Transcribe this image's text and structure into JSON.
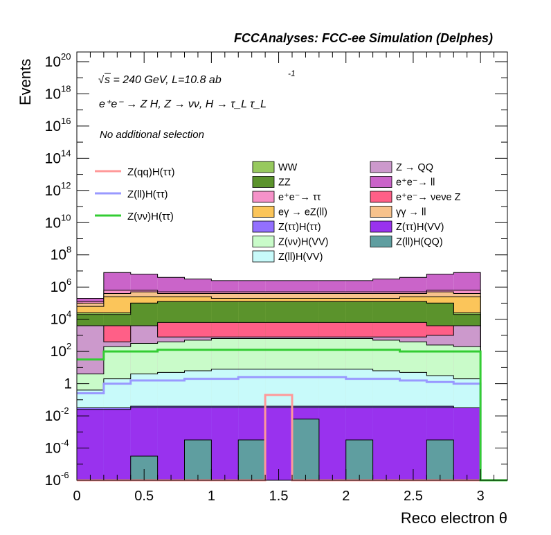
{
  "chart_data": {
    "type": "bar",
    "title": "FCCAnalyses: FCC-ee Simulation (Delphes)",
    "xlabel": "Reco electron θ",
    "ylabel": "Events",
    "xlim": [
      0,
      3.2
    ],
    "ylim_log10": [
      -6,
      20.6
    ],
    "log_y": true,
    "x_ticks": [
      "0",
      "0.5",
      "1",
      "1.5",
      "2",
      "2.5",
      "3"
    ],
    "y_ticks": [
      {
        "exp": 20,
        "mant": "10",
        "sup": "20"
      },
      {
        "exp": 18,
        "mant": "10",
        "sup": "18"
      },
      {
        "exp": 16,
        "mant": "10",
        "sup": "16"
      },
      {
        "exp": 14,
        "mant": "10",
        "sup": "14"
      },
      {
        "exp": 12,
        "mant": "10",
        "sup": "12"
      },
      {
        "exp": 10,
        "mant": "10",
        "sup": "10"
      },
      {
        "exp": 8,
        "mant": "10",
        "sup": "8"
      },
      {
        "exp": 6,
        "mant": "10",
        "sup": "6"
      },
      {
        "exp": 4,
        "mant": "10",
        "sup": "4"
      },
      {
        "exp": 2,
        "mant": "10",
        "sup": "2"
      },
      {
        "exp": 0,
        "mant": "1",
        "sup": ""
      },
      {
        "exp": -2,
        "mant": "10",
        "sup": "-2"
      },
      {
        "exp": -4,
        "mant": "10",
        "sup": "-4"
      },
      {
        "exp": -6,
        "mant": "10",
        "sup": "-6"
      }
    ],
    "bin_edges": [
      0,
      0.2,
      0.4,
      0.6,
      0.8,
      1.0,
      1.2,
      1.4,
      1.6,
      1.8,
      2.0,
      2.2,
      2.4,
      2.6,
      2.8,
      3.0,
      3.2
    ],
    "annotations": {
      "line1_main": "s = 240 GeV, L=10.8 ab",
      "line1_sup": "-1",
      "line2": "e⁺e⁻ → Z H, Z → νν, H → τ_L τ_L",
      "line3": "No additional selection"
    },
    "stack_cumulative_log10": [
      {
        "name": "Z(ll)H(QQ)",
        "color": "#5f9ea0",
        "top": [
          -6.2,
          -6.2,
          -4.5,
          -6.2,
          -3.5,
          -6.2,
          -3.5,
          -6.2,
          -2.2,
          -6.2,
          -3.5,
          -6.2,
          -6.2,
          -3.5,
          -6.2,
          -6.2
        ]
      },
      {
        "name": "Z(ττ)H(VV)",
        "color": "#9932ee",
        "top": [
          -1.6,
          -1.6,
          -1.5,
          -1.5,
          -1.5,
          -1.5,
          -1.5,
          -1.5,
          -1.5,
          -1.5,
          -1.5,
          -1.5,
          -1.5,
          -1.5,
          -1.5,
          -6.2
        ]
      },
      {
        "name": "Z(ττ)H(ττ)",
        "color": "#9370ff",
        "top": [
          -1.5,
          -1.5,
          -1.4,
          -1.4,
          -1.4,
          -1.4,
          -1.4,
          -1.4,
          -1.4,
          -1.4,
          -1.4,
          -1.4,
          -1.4,
          -1.4,
          -1.5,
          -6.2
        ]
      },
      {
        "name": "Z(ll)H(VV)",
        "color": "#c8fafa",
        "top": [
          -0.4,
          0.3,
          0.6,
          0.7,
          0.8,
          0.9,
          0.9,
          0.9,
          0.9,
          0.9,
          0.9,
          0.8,
          0.7,
          0.5,
          0.3,
          -6.2
        ]
      },
      {
        "name": "Z(νν)H(VV)",
        "color": "#c9fbc9",
        "top": [
          0.6,
          2.3,
          2.5,
          2.6,
          2.7,
          2.8,
          2.8,
          2.8,
          2.8,
          2.8,
          2.8,
          2.7,
          2.6,
          2.4,
          2.3,
          -6.2
        ]
      },
      {
        "name": "Z → QQ",
        "color": "#cc99cc",
        "top": [
          3.6,
          2.6,
          3.6,
          2.9,
          2.9,
          2.9,
          2.9,
          2.9,
          2.9,
          2.9,
          2.9,
          2.9,
          2.9,
          3.0,
          3.6,
          -6.2
        ]
      },
      {
        "name": "e⁺e⁻→ νeνe Z",
        "color": "#ff5f87",
        "top": [
          3.6,
          3.6,
          3.6,
          3.8,
          3.8,
          3.8,
          3.8,
          3.8,
          3.8,
          3.8,
          3.8,
          3.8,
          3.8,
          3.6,
          3.6,
          -6.2
        ]
      },
      {
        "name": "ZZ",
        "color": "#5b932c",
        "top": [
          4.3,
          4.3,
          5.0,
          5.1,
          5.1,
          5.1,
          5.1,
          5.1,
          5.1,
          5.1,
          5.1,
          5.1,
          5.1,
          5.0,
          4.3,
          -6.2
        ]
      },
      {
        "name": "WW",
        "color": "#97c95e",
        "top": [
          4.4,
          4.4,
          5.0,
          5.1,
          5.1,
          5.1,
          5.1,
          5.1,
          5.1,
          5.1,
          5.1,
          5.1,
          5.1,
          5.0,
          4.4,
          -6.2
        ]
      },
      {
        "name": "eγ → eZ(ll)",
        "color": "#fbc55a",
        "top": [
          4.8,
          5.4,
          5.4,
          5.4,
          5.4,
          5.3,
          5.3,
          5.3,
          5.3,
          5.3,
          5.3,
          5.3,
          5.4,
          5.4,
          5.4,
          -6.2
        ]
      },
      {
        "name": "γγ → ll",
        "color": "#f7c28c",
        "top": [
          5.0,
          5.6,
          5.7,
          5.6,
          5.6,
          5.6,
          5.6,
          5.6,
          5.6,
          5.6,
          5.6,
          5.6,
          5.6,
          5.7,
          5.6,
          -6.2
        ]
      },
      {
        "name": "e⁺e⁻→ ττ",
        "color": "#f692c9",
        "top": [
          5.1,
          5.8,
          5.8,
          5.7,
          5.7,
          5.7,
          5.7,
          5.7,
          5.7,
          5.7,
          5.7,
          5.7,
          5.7,
          5.8,
          5.8,
          -6.2
        ]
      },
      {
        "name": "e⁺e⁻→ ll",
        "color": "#ca64c9",
        "top": [
          5.3,
          6.9,
          6.8,
          6.6,
          6.5,
          6.4,
          6.4,
          6.4,
          6.4,
          6.4,
          6.4,
          6.5,
          6.6,
          6.8,
          6.9,
          -6.2
        ]
      }
    ],
    "signal_lines": [
      {
        "name": "Z(qq)H(ττ)",
        "color": "#ff9999",
        "values_log10": [
          -6.2,
          -6.2,
          -6.2,
          -6.2,
          -6.2,
          -6.2,
          -6.2,
          -0.7,
          -6.2,
          -6.2,
          -6.2,
          -6.2,
          -6.2,
          -6.2,
          -6.2,
          -6.2
        ]
      },
      {
        "name": "Z(ll)H(ττ)",
        "color": "#9999ff",
        "values_log10": [
          -0.6,
          0.0,
          0.2,
          0.2,
          0.3,
          0.3,
          0.4,
          0.4,
          0.4,
          0.4,
          0.3,
          0.3,
          0.2,
          0.1,
          0.0,
          -6.2
        ]
      },
      {
        "name": "Z(νν)H(ττ)",
        "color": "#33cc33",
        "values_log10": [
          1.5,
          2.0,
          2.0,
          2.1,
          2.1,
          2.1,
          2.1,
          2.1,
          2.1,
          2.1,
          2.1,
          2.1,
          2.0,
          2.0,
          2.0,
          -6.2
        ]
      }
    ],
    "legend_signals": [
      {
        "label": "Z(qq)H(ττ)",
        "color": "#ff9999"
      },
      {
        "label": "Z(ll)H(ττ)",
        "color": "#9999ff"
      },
      {
        "label": "Z(νν)H(ττ)",
        "color": "#33cc33"
      }
    ],
    "legend_backgrounds": [
      {
        "label": "WW",
        "color": "#97c95e"
      },
      {
        "label": "ZZ",
        "color": "#5b932c"
      },
      {
        "label": "e⁺e⁻→ ττ",
        "color": "#f692c9"
      },
      {
        "label": "eγ → eZ(ll)",
        "color": "#fbc55a"
      },
      {
        "label": "Z(ττ)H(ττ)",
        "color": "#9370ff"
      },
      {
        "label": "Z(νν)H(VV)",
        "color": "#c9fbc9"
      },
      {
        "label": "Z(ll)H(VV)",
        "color": "#c8fafa"
      },
      {
        "label": "Z → QQ",
        "color": "#cc99cc"
      },
      {
        "label": "e⁺e⁻→ ll",
        "color": "#ca64c9"
      },
      {
        "label": "e⁺e⁻→ νeνe Z",
        "color": "#ff5f87"
      },
      {
        "label": "γγ → ll",
        "color": "#f7c28c"
      },
      {
        "label": "Z(ττ)H(VV)",
        "color": "#9932ee"
      },
      {
        "label": "Z(ll)H(QQ)",
        "color": "#5f9ea0"
      }
    ],
    "grid": false,
    "legend_placement": "inside, upper half"
  }
}
